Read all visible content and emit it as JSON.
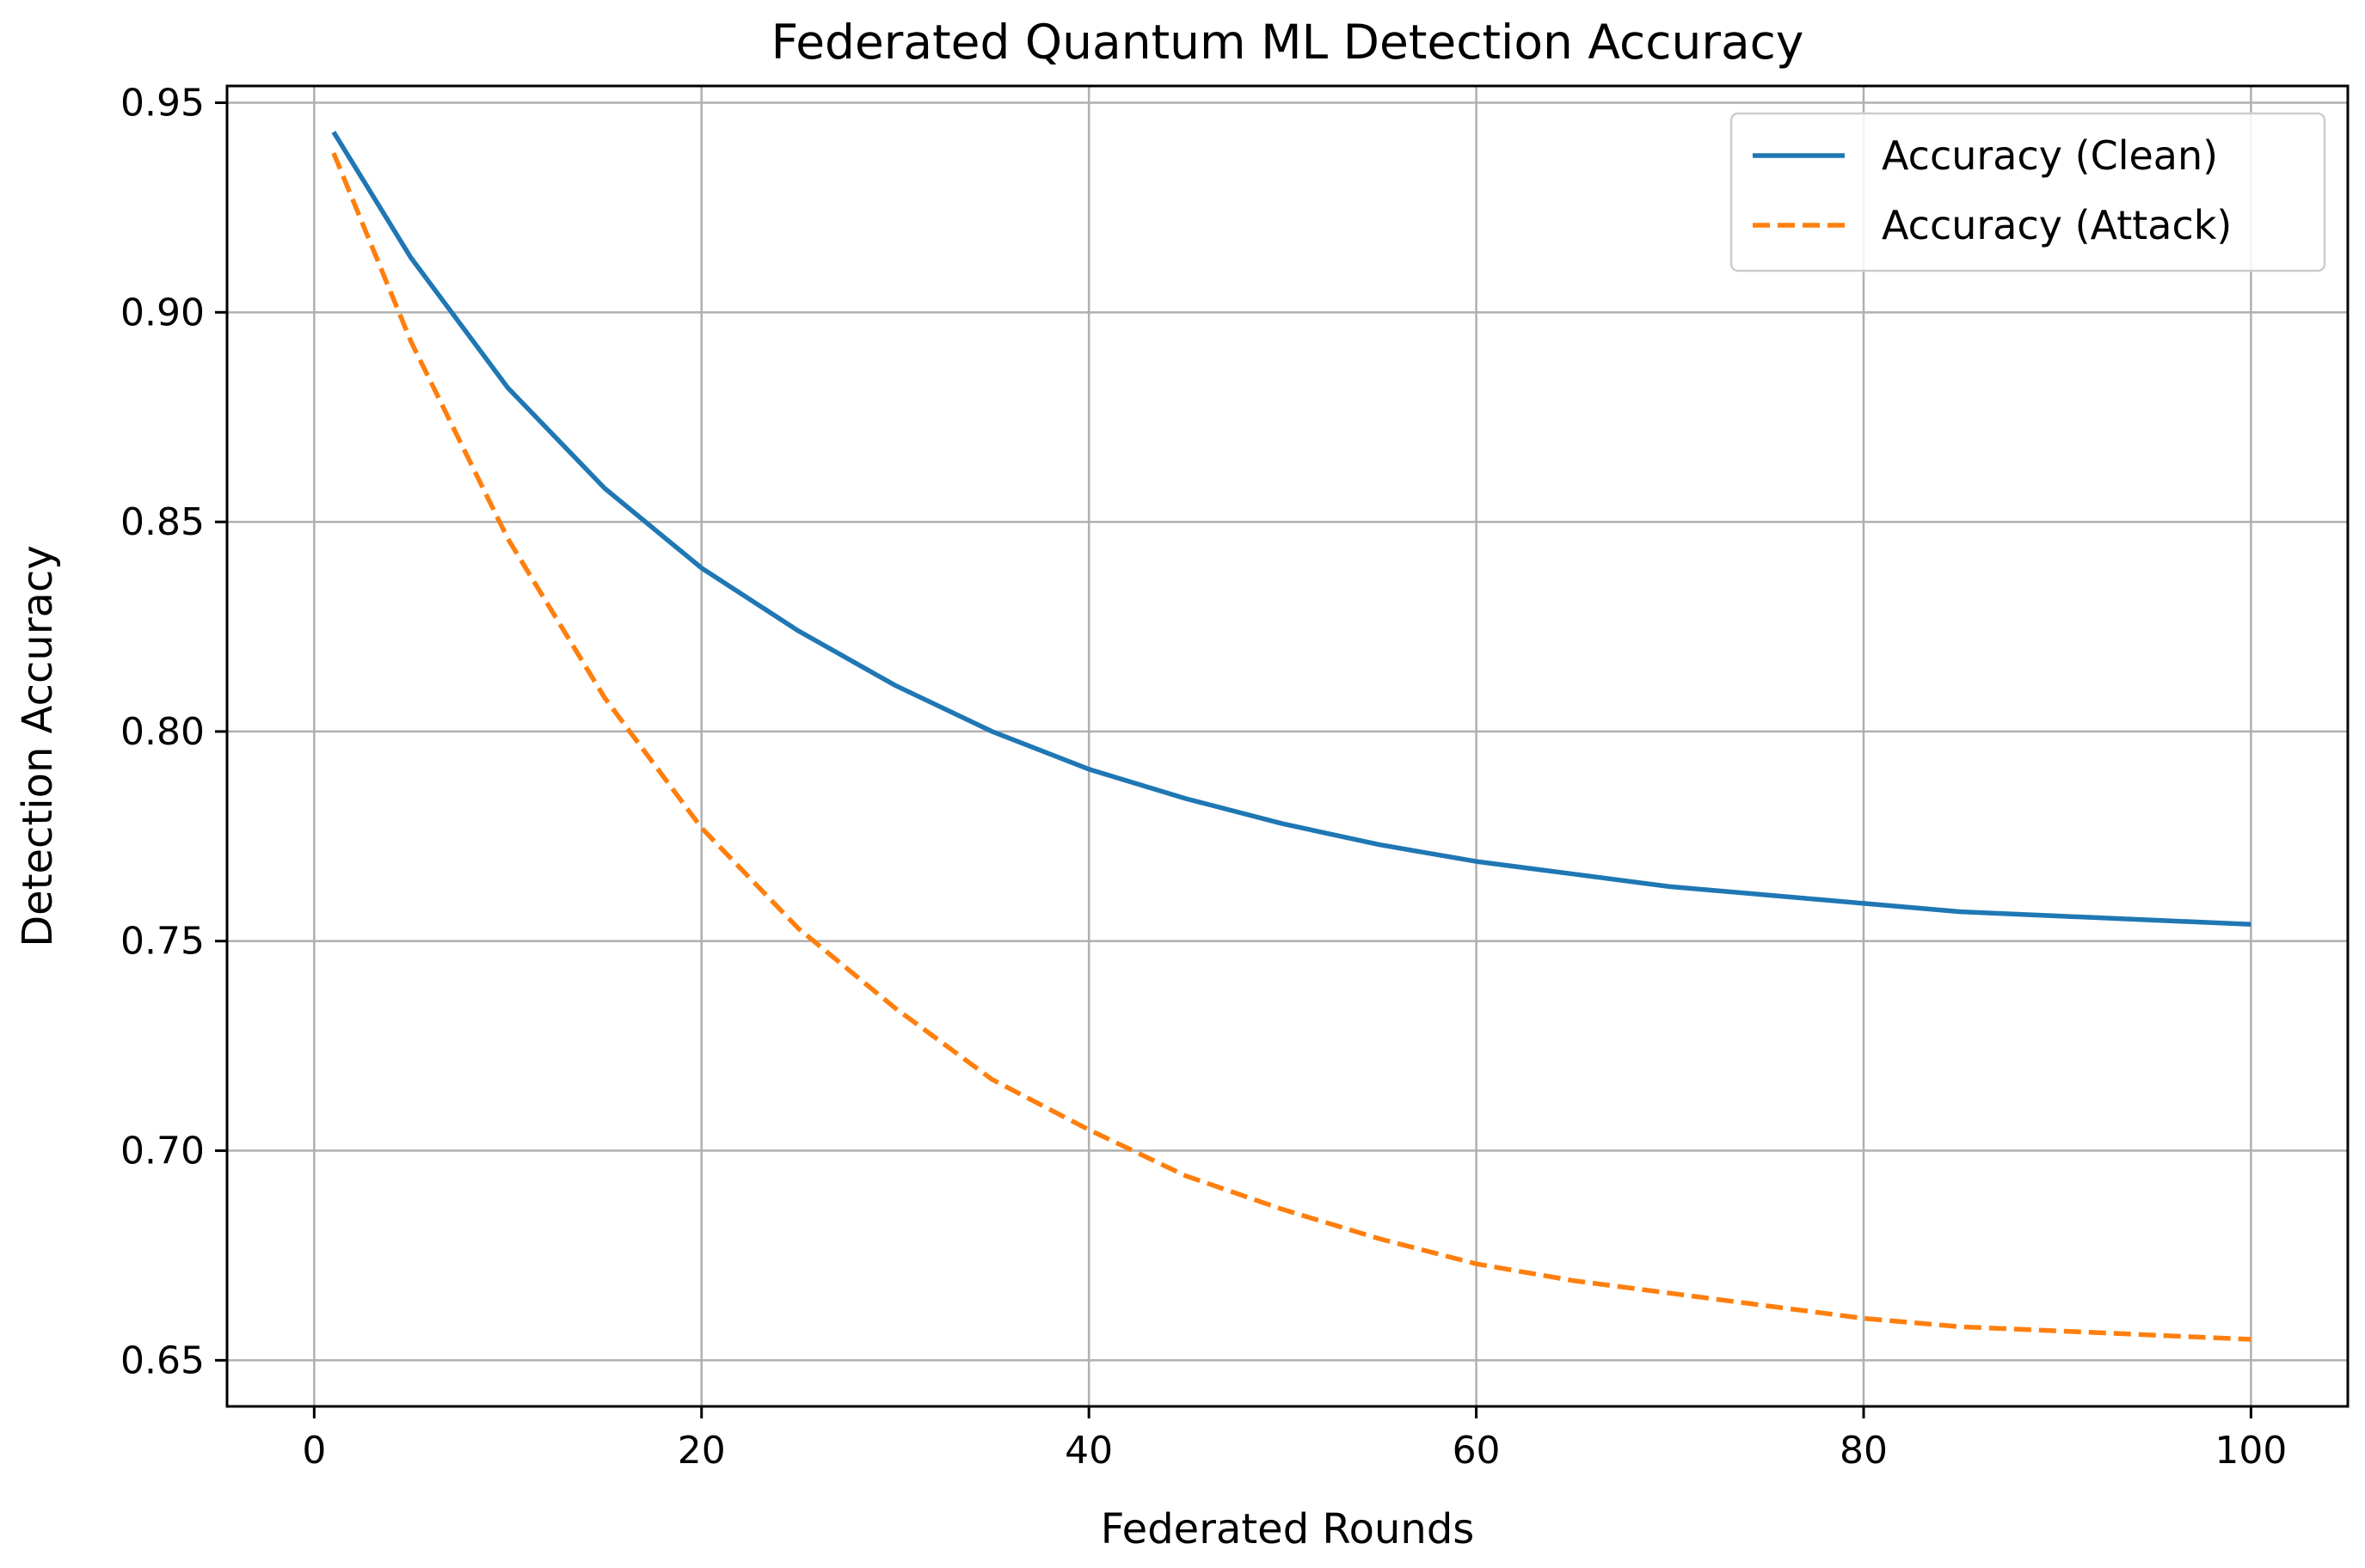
{
  "chart_data": {
    "type": "line",
    "title": "Federated Quantum ML Detection Accuracy",
    "xlabel": "Federated Rounds",
    "ylabel": "Detection Accuracy",
    "xlim": [
      -4.5,
      105
    ],
    "ylim": [
      0.639,
      0.954
    ],
    "xticks": [
      0,
      20,
      40,
      60,
      80,
      100
    ],
    "xtick_labels": [
      "0",
      "20",
      "40",
      "60",
      "80",
      "100"
    ],
    "yticks": [
      0.65,
      0.7,
      0.75,
      0.8,
      0.85,
      0.9,
      0.95
    ],
    "ytick_labels": [
      "0.65",
      "0.70",
      "0.75",
      "0.80",
      "0.85",
      "0.90",
      "0.95"
    ],
    "grid": true,
    "legend_position": "top-right",
    "series": [
      {
        "name": "Accuracy (Clean)",
        "color": "#1f77b4",
        "style": "solid",
        "x": [
          1,
          5,
          10,
          15,
          20,
          25,
          30,
          35,
          40,
          45,
          50,
          55,
          60,
          65,
          70,
          75,
          80,
          85,
          90,
          95,
          100
        ],
        "y": [
          0.943,
          0.913,
          0.882,
          0.858,
          0.839,
          0.824,
          0.811,
          0.8,
          0.791,
          0.784,
          0.778,
          0.773,
          0.769,
          0.766,
          0.763,
          0.761,
          0.759,
          0.757,
          0.756,
          0.755,
          0.754
        ]
      },
      {
        "name": "Accuracy (Attack)",
        "color": "#ff7f0e",
        "style": "dashed",
        "x": [
          1,
          5,
          10,
          15,
          20,
          25,
          30,
          35,
          40,
          45,
          50,
          55,
          60,
          65,
          70,
          75,
          80,
          85,
          90,
          95,
          100
        ],
        "y": [
          0.938,
          0.893,
          0.846,
          0.808,
          0.777,
          0.753,
          0.734,
          0.717,
          0.705,
          0.694,
          0.686,
          0.679,
          0.673,
          0.669,
          0.666,
          0.663,
          0.66,
          0.658,
          0.657,
          0.656,
          0.655
        ]
      }
    ]
  }
}
